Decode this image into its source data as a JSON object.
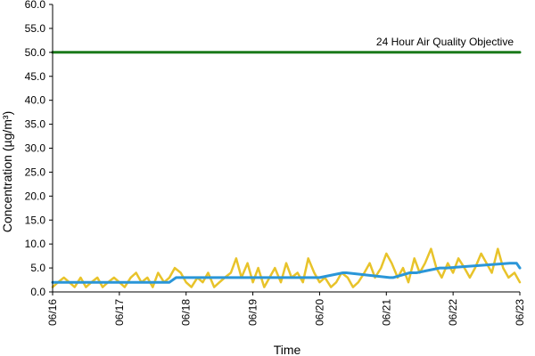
{
  "chart_data": {
    "type": "line",
    "title": "",
    "xlabel": "Time",
    "ylabel": "Concentration (µg/m³)",
    "ylim": [
      0,
      60
    ],
    "y_ticks": [
      "0.0",
      "5.0",
      "10.0",
      "15.0",
      "20.0",
      "25.0",
      "30.0",
      "35.0",
      "40.0",
      "45.0",
      "50.0",
      "55.0",
      "60.0"
    ],
    "x_ticks": [
      "06/16",
      "06/17",
      "06/18",
      "06/19",
      "06/20",
      "06/21",
      "06/22",
      "06/23"
    ],
    "x_unit": "days",
    "xlim": [
      0,
      7
    ],
    "grid": false,
    "legend": "none",
    "annotation": {
      "text": "24 Hour Air Quality Objective",
      "value": 50
    },
    "series": [
      {
        "kind": "objective",
        "color": "#1a7a1a",
        "x": [
          0,
          7
        ],
        "values": [
          50,
          50
        ]
      },
      {
        "kind": "hourly",
        "color": "#e8c32a",
        "x": [
          0,
          0.08,
          0.17,
          0.25,
          0.33,
          0.42,
          0.5,
          0.58,
          0.67,
          0.75,
          0.83,
          0.92,
          1.0,
          1.08,
          1.17,
          1.25,
          1.33,
          1.42,
          1.5,
          1.58,
          1.67,
          1.75,
          1.83,
          1.92,
          2.0,
          2.08,
          2.17,
          2.25,
          2.33,
          2.42,
          2.5,
          2.58,
          2.67,
          2.75,
          2.83,
          2.92,
          3.0,
          3.08,
          3.17,
          3.25,
          3.33,
          3.42,
          3.5,
          3.58,
          3.67,
          3.75,
          3.83,
          3.92,
          4.0,
          4.08,
          4.17,
          4.25,
          4.33,
          4.42,
          4.5,
          4.58,
          4.67,
          4.75,
          4.83,
          4.92,
          5.0,
          5.08,
          5.17,
          5.25,
          5.33,
          5.42,
          5.5,
          5.58,
          5.67,
          5.75,
          5.83,
          5.92,
          6.0,
          6.08,
          6.17,
          6.25,
          6.33,
          6.42,
          6.5,
          6.58,
          6.67,
          6.75,
          6.83,
          6.92,
          7.0
        ],
        "values": [
          1,
          2,
          3,
          2,
          1,
          3,
          1,
          2,
          3,
          1,
          2,
          3,
          2,
          1,
          3,
          4,
          2,
          3,
          1,
          4,
          2,
          3,
          5,
          4,
          2,
          1,
          3,
          2,
          4,
          1,
          2,
          3,
          4,
          7,
          3,
          6,
          2,
          5,
          1,
          3,
          5,
          2,
          6,
          3,
          4,
          2,
          7,
          4,
          2,
          3,
          1,
          2,
          4,
          3,
          1,
          2,
          4,
          6,
          3,
          5,
          8,
          6,
          3,
          5,
          2,
          7,
          4,
          6,
          9,
          5,
          3,
          6,
          4,
          7,
          5,
          3,
          5,
          8,
          6,
          4,
          9,
          5,
          3,
          4,
          2
        ]
      },
      {
        "kind": "average",
        "color": "#2a96d8",
        "x": [
          0,
          1.0,
          1.0,
          1.75,
          1.85,
          4.0,
          4.0,
          4.35,
          4.4,
          5.05,
          5.1,
          5.35,
          5.45,
          5.8,
          5.9,
          6.85,
          6.95,
          7.0
        ],
        "values": [
          2,
          2,
          2,
          2,
          3,
          3,
          3,
          4,
          4,
          3,
          3,
          4,
          4,
          5,
          5,
          6,
          6,
          5
        ]
      }
    ]
  }
}
